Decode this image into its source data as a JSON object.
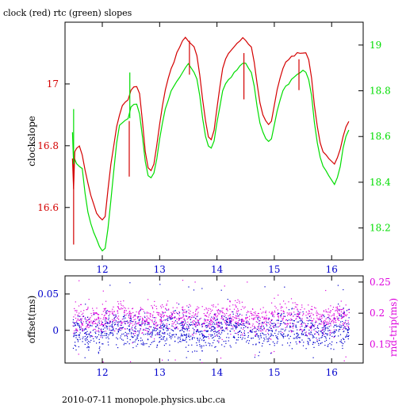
{
  "header": {
    "title": "clock (red) rtc (green) slopes"
  },
  "footer": {
    "text": "2010-07-11 monopole.physics.ubc.ca"
  },
  "colors": {
    "red": "#d40000",
    "green": "#00dd00",
    "blue": "#0000cc",
    "magenta": "#dd00dd",
    "axis": "#000000"
  },
  "chart_data": [
    {
      "type": "line",
      "title": "clock (red) rtc (green) slopes",
      "ylabel": "clockslope",
      "y2label": "",
      "xlim": [
        11.35,
        16.55
      ],
      "ylim": [
        16.43,
        17.2
      ],
      "y2lim": [
        18.06,
        19.1
      ],
      "x_ticks": [
        12,
        13,
        14,
        15,
        16
      ],
      "y_ticks": [
        16.6,
        16.8,
        17
      ],
      "y2_ticks": [
        18.2,
        18.4,
        18.6,
        18.8,
        19
      ],
      "series": [
        {
          "axis": "left",
          "color": "#d40000",
          "x": [
            11.48,
            11.5,
            11.52,
            11.55,
            11.6,
            11.65,
            11.7,
            11.75,
            11.8,
            11.85,
            11.9,
            11.95,
            12.0,
            12.05,
            12.1,
            12.15,
            12.2,
            12.25,
            12.3,
            12.35,
            12.4,
            12.45,
            12.5,
            12.55,
            12.6,
            12.65,
            12.7,
            12.75,
            12.8,
            12.85,
            12.9,
            12.95,
            13.0,
            13.05,
            13.1,
            13.15,
            13.2,
            13.25,
            13.3,
            13.35,
            13.4,
            13.45,
            13.5,
            13.55,
            13.6,
            13.65,
            13.7,
            13.75,
            13.8,
            13.85,
            13.9,
            13.95,
            14.0,
            14.05,
            14.1,
            14.15,
            14.2,
            14.25,
            14.3,
            14.35,
            14.4,
            14.45,
            14.5,
            14.55,
            14.6,
            14.65,
            14.7,
            14.75,
            14.8,
            14.85,
            14.9,
            14.95,
            15.0,
            15.05,
            15.1,
            15.15,
            15.2,
            15.25,
            15.3,
            15.35,
            15.4,
            15.45,
            15.5,
            15.55,
            15.6,
            15.65,
            15.7,
            15.75,
            15.8,
            15.85,
            15.9,
            15.95,
            16.0,
            16.05,
            16.1,
            16.15,
            16.2,
            16.25,
            16.3
          ],
          "values": [
            16.76,
            16.66,
            16.78,
            16.79,
            16.8,
            16.77,
            16.72,
            16.68,
            16.64,
            16.61,
            16.58,
            16.57,
            16.56,
            16.57,
            16.66,
            16.74,
            16.8,
            16.86,
            16.9,
            16.93,
            16.94,
            16.95,
            16.98,
            16.99,
            16.99,
            16.97,
            16.88,
            16.78,
            16.73,
            16.72,
            16.74,
            16.8,
            16.87,
            16.93,
            16.98,
            17.02,
            17.05,
            17.07,
            17.1,
            17.12,
            17.14,
            17.15,
            17.14,
            17.13,
            17.12,
            17.09,
            17.03,
            16.95,
            16.88,
            16.83,
            16.82,
            16.85,
            16.92,
            16.99,
            17.05,
            17.08,
            17.1,
            17.11,
            17.12,
            17.13,
            17.14,
            17.15,
            17.14,
            17.13,
            17.12,
            17.07,
            17.0,
            16.94,
            16.9,
            16.88,
            16.87,
            16.88,
            16.93,
            16.98,
            17.02,
            17.05,
            17.07,
            17.08,
            17.09,
            17.09,
            17.1,
            17.1,
            17.1,
            17.1,
            17.08,
            17.02,
            16.93,
            16.86,
            16.81,
            16.78,
            16.77,
            16.76,
            16.75,
            16.74,
            16.76,
            16.79,
            16.83,
            16.86,
            16.88
          ]
        },
        {
          "axis": "right",
          "color": "#00dd00",
          "x": [
            11.48,
            11.5,
            11.52,
            11.55,
            11.6,
            11.65,
            11.7,
            11.75,
            11.8,
            11.85,
            11.9,
            11.95,
            12.0,
            12.05,
            12.1,
            12.15,
            12.2,
            12.25,
            12.3,
            12.35,
            12.4,
            12.45,
            12.5,
            12.55,
            12.6,
            12.65,
            12.7,
            12.75,
            12.8,
            12.85,
            12.9,
            12.95,
            13.0,
            13.05,
            13.1,
            13.15,
            13.2,
            13.25,
            13.3,
            13.35,
            13.4,
            13.45,
            13.5,
            13.55,
            13.6,
            13.65,
            13.7,
            13.75,
            13.8,
            13.85,
            13.9,
            13.95,
            14.0,
            14.05,
            14.1,
            14.15,
            14.2,
            14.25,
            14.3,
            14.35,
            14.4,
            14.45,
            14.5,
            14.55,
            14.6,
            14.65,
            14.7,
            14.75,
            14.8,
            14.85,
            14.9,
            14.95,
            15.0,
            15.05,
            15.1,
            15.15,
            15.2,
            15.25,
            15.3,
            15.35,
            15.4,
            15.45,
            15.5,
            15.55,
            15.6,
            15.65,
            15.7,
            15.75,
            15.8,
            15.85,
            15.9,
            15.95,
            16.0,
            16.05,
            16.1,
            16.15,
            16.2,
            16.25,
            16.3
          ],
          "values": [
            18.62,
            18.48,
            18.5,
            18.48,
            18.47,
            18.46,
            18.35,
            18.27,
            18.22,
            18.18,
            18.15,
            18.12,
            18.1,
            18.11,
            18.2,
            18.32,
            18.45,
            18.57,
            18.65,
            18.66,
            18.67,
            18.68,
            18.73,
            18.74,
            18.74,
            18.7,
            18.6,
            18.49,
            18.43,
            18.42,
            18.44,
            18.5,
            18.59,
            18.66,
            18.72,
            18.76,
            18.8,
            18.82,
            18.84,
            18.86,
            18.88,
            18.9,
            18.92,
            18.9,
            18.88,
            18.85,
            18.78,
            18.68,
            18.6,
            18.56,
            18.55,
            18.58,
            18.66,
            18.73,
            18.8,
            18.83,
            18.85,
            18.86,
            18.88,
            18.89,
            18.91,
            18.92,
            18.92,
            18.9,
            18.88,
            18.82,
            18.73,
            18.66,
            18.62,
            18.59,
            18.58,
            18.59,
            18.65,
            18.71,
            18.76,
            18.8,
            18.82,
            18.83,
            18.85,
            18.86,
            18.87,
            18.88,
            18.89,
            18.88,
            18.85,
            18.78,
            18.66,
            18.57,
            18.51,
            18.47,
            18.45,
            18.43,
            18.41,
            18.39,
            18.42,
            18.47,
            18.55,
            18.6,
            18.63
          ]
        }
      ],
      "spikes": [
        {
          "x": 11.5,
          "from": 16.76,
          "to": 16.48,
          "axis": "left"
        },
        {
          "x": 12.47,
          "from": 16.88,
          "to": 16.7,
          "axis": "left"
        },
        {
          "x": 13.52,
          "from": 17.14,
          "to": 17.03,
          "axis": "left"
        },
        {
          "x": 14.47,
          "from": 17.1,
          "to": 16.95,
          "axis": "left"
        },
        {
          "x": 15.43,
          "from": 17.08,
          "to": 16.98,
          "axis": "left"
        },
        {
          "x": 11.5,
          "from": 18.48,
          "to": 18.72,
          "axis": "right"
        },
        {
          "x": 12.48,
          "from": 18.68,
          "to": 18.88,
          "axis": "right"
        }
      ]
    },
    {
      "type": "scatter",
      "ylabel": "offset(ms)",
      "y2label": "rnd-trip(ms)",
      "xlim": [
        11.35,
        16.55
      ],
      "ylim": [
        -0.045,
        0.075
      ],
      "y2lim": [
        0.12,
        0.26
      ],
      "x_ticks": [
        12,
        13,
        14,
        15,
        16
      ],
      "y_ticks": [
        0,
        0.05
      ],
      "y_tick_labels": [
        "0",
        "0.05"
      ],
      "y2_ticks": [
        0.15,
        0.2,
        0.25
      ],
      "series": [
        {
          "name": "offset",
          "axis": "left",
          "color": "#0000cc",
          "center": 0.0,
          "spread": 0.012
        },
        {
          "name": "rnd-trip",
          "axis": "right",
          "color": "#dd00dd",
          "center": 0.192,
          "spread": 0.012
        }
      ]
    }
  ]
}
